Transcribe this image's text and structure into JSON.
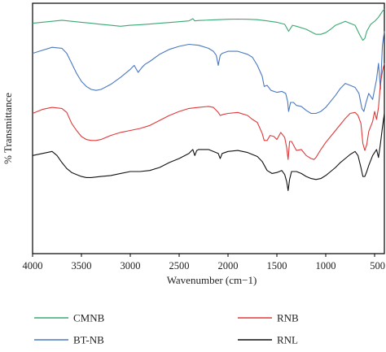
{
  "chart_data": {
    "type": "line",
    "xlabel": "Wavenumber (cm−1)",
    "ylabel": "% Transmittance",
    "xlim": [
      4000,
      400
    ],
    "x_reversed": true,
    "xticks": [
      4000,
      3500,
      3000,
      2500,
      2000,
      1500,
      1000,
      500
    ],
    "xtick_labels": [
      "4000",
      "3500",
      "3000",
      "2500",
      "2000",
      "1500",
      "1000",
      "500"
    ],
    "y_ticks_shown": false,
    "grid": false,
    "legend_position": "bottom",
    "colors": {
      "CMNB": "#3aa872",
      "BT-NB": "#4a78c0",
      "RNB": "#e0383a",
      "RNL": "#111111"
    },
    "series": [
      {
        "name": "CMNB",
        "x": [
          4000,
          3800,
          3700,
          3600,
          3500,
          3400,
          3300,
          3200,
          3100,
          3000,
          2900,
          2800,
          2700,
          2600,
          2500,
          2400,
          2360,
          2340,
          2300,
          2200,
          2100,
          2000,
          1900,
          1800,
          1700,
          1600,
          1500,
          1420,
          1380,
          1340,
          1300,
          1200,
          1100,
          1050,
          1000,
          950,
          900,
          800,
          700,
          650,
          620,
          600,
          580,
          540,
          500,
          460,
          420,
          400
        ],
        "values": [
          90,
          91,
          91.5,
          91,
          90.5,
          90,
          89.5,
          89,
          88.5,
          89,
          89.3,
          89.6,
          90,
          90.4,
          90.8,
          91.2,
          92.3,
          91.2,
          91.4,
          91.6,
          91.8,
          92,
          92.1,
          92,
          91.8,
          91.2,
          90.5,
          89.5,
          86,
          89,
          88.5,
          87,
          84.5,
          84.5,
          85.3,
          87,
          89,
          91,
          89,
          84,
          81.5,
          82.5,
          86,
          89.5,
          91,
          93,
          96,
          97
        ]
      },
      {
        "name": "BT-NB",
        "x": [
          4000,
          3900,
          3800,
          3700,
          3650,
          3600,
          3550,
          3500,
          3450,
          3400,
          3350,
          3300,
          3200,
          3100,
          3000,
          2960,
          2920,
          2880,
          2850,
          2800,
          2700,
          2600,
          2500,
          2400,
          2300,
          2200,
          2150,
          2120,
          2100,
          2080,
          2060,
          2000,
          1900,
          1800,
          1750,
          1700,
          1650,
          1630,
          1600,
          1560,
          1500,
          1450,
          1410,
          1390,
          1380,
          1360,
          1330,
          1300,
          1250,
          1200,
          1150,
          1100,
          1050,
          1000,
          950,
          900,
          850,
          800,
          750,
          700,
          660,
          630,
          610,
          590,
          560,
          520,
          480,
          460,
          440,
          420,
          400
        ],
        "values": [
          75,
          76.5,
          78,
          77.5,
          75,
          70,
          65,
          61,
          58.5,
          57,
          56.5,
          57,
          59.5,
          63,
          67,
          69,
          65.5,
          68,
          69.5,
          71,
          74.5,
          77,
          78.5,
          79.5,
          79,
          77.5,
          76,
          74,
          69,
          74,
          75,
          76,
          76,
          74.5,
          73,
          69,
          63.5,
          58.5,
          59,
          56.5,
          55.5,
          56,
          55,
          51,
          46,
          50.5,
          50.5,
          49,
          48.5,
          46.5,
          45,
          45,
          46,
          48,
          51,
          54,
          57.5,
          60,
          59,
          58,
          55,
          47.5,
          46,
          50,
          55,
          52,
          62,
          70,
          57,
          79,
          86
        ]
      },
      {
        "name": "RNB",
        "x": [
          4000,
          3900,
          3800,
          3700,
          3650,
          3600,
          3550,
          3500,
          3450,
          3400,
          3350,
          3300,
          3200,
          3100,
          3000,
          2900,
          2800,
          2700,
          2600,
          2500,
          2400,
          2300,
          2200,
          2150,
          2120,
          2100,
          2080,
          2050,
          2000,
          1900,
          1800,
          1750,
          1700,
          1650,
          1630,
          1600,
          1570,
          1530,
          1500,
          1460,
          1420,
          1400,
          1385,
          1370,
          1350,
          1300,
          1250,
          1200,
          1150,
          1120,
          1100,
          1050,
          1000,
          950,
          900,
          850,
          800,
          750,
          700,
          670,
          640,
          620,
          600,
          580,
          560,
          520,
          500,
          480,
          460,
          440,
          420,
          400
        ],
        "values": [
          45,
          47,
          48,
          47.5,
          45.5,
          40,
          36.5,
          33.5,
          32,
          31.5,
          31.5,
          32,
          34,
          35.5,
          36.5,
          37.5,
          39,
          41.5,
          44,
          46,
          47.5,
          48,
          48.5,
          48,
          46.5,
          45.5,
          44,
          44.5,
          45,
          45.5,
          44,
          42,
          40.5,
          35,
          31.5,
          31.5,
          34,
          33.5,
          32,
          35.5,
          33,
          28,
          22,
          31,
          31,
          26.5,
          27,
          24,
          22.5,
          22,
          23,
          27,
          30.5,
          33.5,
          36.5,
          39.5,
          42.5,
          45,
          45.5,
          44,
          40,
          30,
          26.5,
          29.5,
          36,
          41,
          46,
          42,
          48,
          60,
          66,
          70
        ]
      },
      {
        "name": "RNL",
        "x": [
          4000,
          3900,
          3800,
          3750,
          3700,
          3650,
          3600,
          3550,
          3500,
          3450,
          3400,
          3300,
          3200,
          3100,
          3000,
          2900,
          2800,
          2700,
          2600,
          2500,
          2400,
          2380,
          2360,
          2340,
          2320,
          2300,
          2200,
          2100,
          2080,
          2060,
          2000,
          1900,
          1800,
          1700,
          1650,
          1600,
          1550,
          1500,
          1450,
          1420,
          1400,
          1385,
          1370,
          1350,
          1300,
          1250,
          1200,
          1150,
          1100,
          1050,
          1000,
          950,
          900,
          850,
          800,
          750,
          700,
          670,
          640,
          620,
          600,
          580,
          560,
          520,
          480,
          460,
          440,
          420,
          400
        ],
        "values": [
          24,
          25,
          26,
          24,
          20.5,
          17.5,
          15.5,
          14.5,
          13.5,
          13,
          13,
          13.5,
          14,
          15,
          16,
          16,
          16.5,
          18,
          20.5,
          22.5,
          25,
          26,
          27,
          24,
          26.5,
          27,
          27,
          25,
          22.5,
          25,
          26,
          26.5,
          25.5,
          23.5,
          21,
          16.5,
          15,
          15.5,
          16.5,
          14.5,
          11,
          6.5,
          12,
          16,
          16,
          15,
          13.5,
          12.5,
          12,
          12.5,
          14,
          16,
          18,
          20.5,
          22.5,
          24.5,
          26,
          24,
          18,
          13.5,
          13.5,
          16,
          19,
          24,
          27,
          23,
          30,
          38,
          45
        ]
      }
    ]
  }
}
